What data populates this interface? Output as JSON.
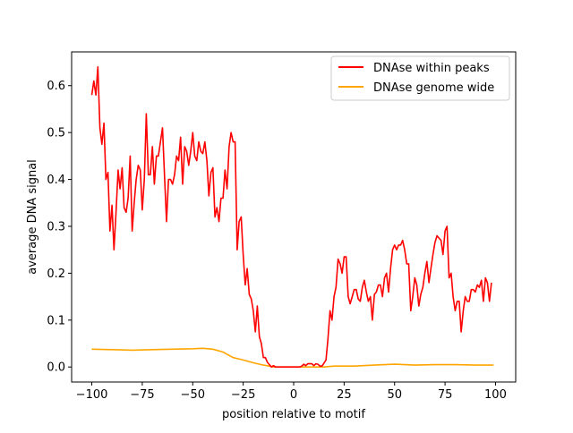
{
  "chart_data": {
    "type": "line",
    "title": "",
    "xlabel": "position relative to motif",
    "ylabel": "average DNA signal",
    "xlim": [
      -110,
      110
    ],
    "ylim": [
      -0.032,
      0.672
    ],
    "xticks": [
      -100,
      -75,
      -50,
      -25,
      0,
      25,
      50,
      75,
      100
    ],
    "yticks": [
      0.0,
      0.1,
      0.2,
      0.3,
      0.4,
      0.5,
      0.6
    ],
    "xtick_labels": [
      "−100",
      "−75",
      "−50",
      "−25",
      "0",
      "25",
      "50",
      "75",
      "100"
    ],
    "ytick_labels": [
      "0.0",
      "0.1",
      "0.2",
      "0.3",
      "0.4",
      "0.5",
      "0.6"
    ],
    "grid": false,
    "legend": "top-right",
    "series": [
      {
        "name": "DNAse within peaks",
        "color": "#ff0000",
        "x_start": -100,
        "x_step": 1,
        "y": [
          0.58,
          0.61,
          0.58,
          0.64,
          0.51,
          0.475,
          0.52,
          0.4,
          0.415,
          0.29,
          0.345,
          0.25,
          0.33,
          0.42,
          0.38,
          0.425,
          0.34,
          0.33,
          0.36,
          0.45,
          0.29,
          0.35,
          0.4,
          0.43,
          0.42,
          0.335,
          0.4,
          0.54,
          0.41,
          0.41,
          0.47,
          0.39,
          0.45,
          0.45,
          0.48,
          0.51,
          0.41,
          0.31,
          0.4,
          0.4,
          0.39,
          0.41,
          0.45,
          0.44,
          0.49,
          0.39,
          0.47,
          0.46,
          0.43,
          0.46,
          0.5,
          0.45,
          0.44,
          0.48,
          0.46,
          0.455,
          0.48,
          0.44,
          0.365,
          0.415,
          0.425,
          0.32,
          0.34,
          0.31,
          0.36,
          0.36,
          0.42,
          0.38,
          0.47,
          0.5,
          0.48,
          0.48,
          0.25,
          0.31,
          0.32,
          0.24,
          0.175,
          0.21,
          0.155,
          0.145,
          0.12,
          0.075,
          0.13,
          0.065,
          0.05,
          0.02,
          0.02,
          0.01,
          0.005,
          0.0,
          0.003,
          0.0,
          0.0,
          0.0,
          0.0,
          0.0,
          0.0,
          0.0,
          0.0,
          0.0,
          0.0,
          0.0,
          0.0,
          0.0,
          0.002,
          0.006,
          0.003,
          0.007,
          0.007,
          0.007,
          0.003,
          0.007,
          0.006,
          0.002,
          0.002,
          0.008,
          0.015,
          0.06,
          0.12,
          0.1,
          0.15,
          0.17,
          0.23,
          0.22,
          0.2,
          0.235,
          0.235,
          0.15,
          0.135,
          0.15,
          0.165,
          0.165,
          0.145,
          0.14,
          0.17,
          0.185,
          0.16,
          0.14,
          0.15,
          0.1,
          0.155,
          0.16,
          0.175,
          0.175,
          0.15,
          0.19,
          0.2,
          0.16,
          0.21,
          0.25,
          0.26,
          0.25,
          0.26,
          0.26,
          0.27,
          0.25,
          0.22,
          0.22,
          0.12,
          0.15,
          0.19,
          0.175,
          0.13,
          0.155,
          0.17,
          0.2,
          0.225,
          0.18,
          0.21,
          0.24,
          0.265,
          0.28,
          0.275,
          0.27,
          0.24,
          0.29,
          0.3,
          0.19,
          0.2,
          0.15,
          0.12,
          0.14,
          0.14,
          0.075,
          0.12,
          0.15,
          0.14,
          0.14,
          0.165,
          0.165,
          0.16,
          0.175,
          0.17,
          0.185,
          0.14,
          0.19,
          0.18,
          0.14,
          0.18
        ]
      },
      {
        "name": "DNAse genome wide",
        "color": "#ffa500",
        "x": [
          -100,
          -90,
          -80,
          -70,
          -60,
          -50,
          -45,
          -40,
          -35,
          -30,
          -25,
          -20,
          -15,
          -12,
          -10,
          0,
          15,
          20,
          30,
          40,
          50,
          60,
          70,
          80,
          90,
          99
        ],
        "y": [
          0.038,
          0.037,
          0.036,
          0.037,
          0.038,
          0.039,
          0.04,
          0.038,
          0.032,
          0.02,
          0.015,
          0.009,
          0.004,
          0.002,
          0.0,
          0.0,
          0.0,
          0.002,
          0.002,
          0.004,
          0.006,
          0.004,
          0.005,
          0.005,
          0.004,
          0.004
        ]
      }
    ]
  }
}
